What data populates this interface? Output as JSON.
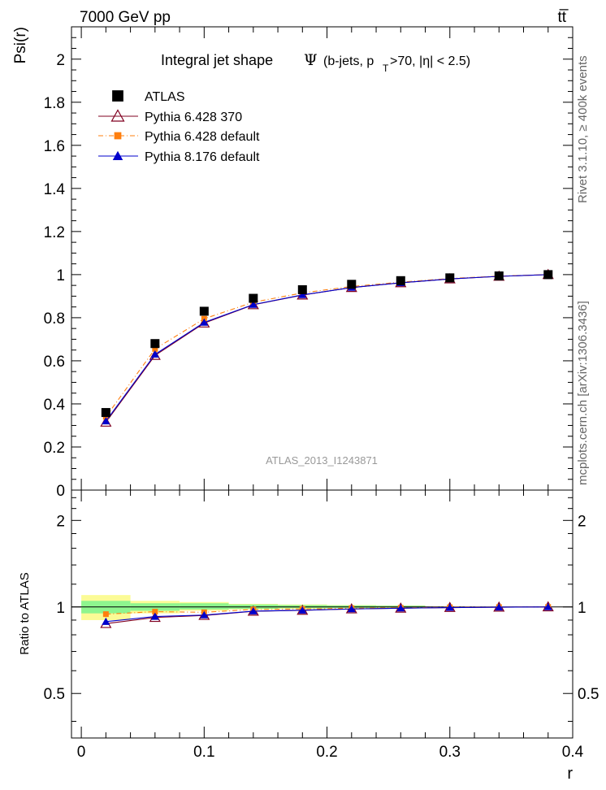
{
  "header": {
    "left": "7000 GeV pp",
    "right": "tt̅",
    "title_main": "Integral jet shape",
    "title_symbol": "Ψ",
    "title_paren_open": "(b-jets, p",
    "title_sub": "T",
    "title_paren_close": ">70, |η| < 2.5)"
  },
  "side_labels": {
    "rivet": "Rivet 3.1.10, ≥ 400k events",
    "mcplots": "mcplots.cern.ch [arXiv:1306.3436]"
  },
  "watermark": "ATLAS_2013_I1243871",
  "colors": {
    "atlas": "#000000",
    "p6_370": "#800020",
    "p6_default": "#ff7f0e",
    "p8_default": "#0000cc",
    "band_inner": "#8ef58e",
    "band_outer": "#fbfb96"
  },
  "chart_data": [
    {
      "type": "scatter",
      "panel": "main",
      "ylabel": "Psi(r)",
      "xlabel": "",
      "xlim": [
        -0.008,
        0.4
      ],
      "ylim": [
        0,
        2.15
      ],
      "yticks": [
        {
          "v": 0,
          "label": "0"
        },
        {
          "v": 0.2,
          "label": "0.2"
        },
        {
          "v": 0.4,
          "label": "0.4"
        },
        {
          "v": 0.6,
          "label": "0.6"
        },
        {
          "v": 0.8,
          "label": "0.8"
        },
        {
          "v": 1,
          "label": "1"
        },
        {
          "v": 1.2,
          "label": "1.2"
        },
        {
          "v": 1.4,
          "label": "1.4"
        },
        {
          "v": 1.6,
          "label": "1.6"
        },
        {
          "v": 1.8,
          "label": "1.8"
        },
        {
          "v": 2,
          "label": "2"
        }
      ],
      "x": [
        0.02,
        0.06,
        0.1,
        0.14,
        0.18,
        0.22,
        0.26,
        0.3,
        0.34,
        0.38
      ],
      "series": [
        {
          "name": "ATLAS",
          "key": "atlas",
          "marker": "square",
          "values": [
            0.36,
            0.68,
            0.83,
            0.89,
            0.93,
            0.955,
            0.972,
            0.985,
            0.994,
            1.0
          ]
        },
        {
          "name": "Pythia 6.428 370",
          "key": "p6_370",
          "marker": "open-triangle",
          "values": [
            0.315,
            0.625,
            0.775,
            0.86,
            0.905,
            0.94,
            0.962,
            0.98,
            0.992,
            1.0
          ]
        },
        {
          "name": "Pythia 6.428 default",
          "key": "p6_default",
          "marker": "small-square",
          "values": [
            0.34,
            0.655,
            0.795,
            0.872,
            0.915,
            0.945,
            0.965,
            0.982,
            0.993,
            1.0
          ]
        },
        {
          "name": "Pythia 8.176 default",
          "key": "p8_default",
          "marker": "filled-triangle",
          "values": [
            0.32,
            0.63,
            0.778,
            0.861,
            0.906,
            0.94,
            0.962,
            0.98,
            0.992,
            1.0
          ]
        }
      ]
    },
    {
      "type": "scatter",
      "panel": "ratio",
      "ylabel": "Ratio to ATLAS",
      "xlabel": "r",
      "xlim": [
        -0.008,
        0.4
      ],
      "ylim": [
        0.35,
        2.55
      ],
      "yticks": [
        {
          "v": 0.5,
          "label": "0.5"
        },
        {
          "v": 1,
          "label": "1"
        },
        {
          "v": 2,
          "label": "2"
        }
      ],
      "xticks": [
        {
          "v": 0,
          "label": "0"
        },
        {
          "v": 0.1,
          "label": "0.1"
        },
        {
          "v": 0.2,
          "label": "0.2"
        },
        {
          "v": 0.3,
          "label": "0.3"
        },
        {
          "v": 0.4,
          "label": "0.4"
        }
      ],
      "bands": [
        {
          "x0": 0.0,
          "x1": 0.04,
          "inner": [
            0.95,
            1.05
          ],
          "outer": [
            0.9,
            1.1
          ]
        },
        {
          "x0": 0.04,
          "x1": 0.08,
          "inner": [
            0.97,
            1.03
          ],
          "outer": [
            0.95,
            1.05
          ]
        },
        {
          "x0": 0.08,
          "x1": 0.12,
          "inner": [
            0.98,
            1.03
          ],
          "outer": [
            0.97,
            1.04
          ]
        },
        {
          "x0": 0.12,
          "x1": 0.16,
          "inner": [
            0.985,
            1.02
          ],
          "outer": [
            0.98,
            1.025
          ]
        },
        {
          "x0": 0.16,
          "x1": 0.2,
          "inner": [
            0.99,
            1.015
          ],
          "outer": [
            0.985,
            1.02
          ]
        },
        {
          "x0": 0.2,
          "x1": 0.24,
          "inner": [
            0.992,
            1.012
          ],
          "outer": [
            0.99,
            1.015
          ]
        },
        {
          "x0": 0.24,
          "x1": 0.28,
          "inner": [
            0.995,
            1.01
          ],
          "outer": [
            0.993,
            1.012
          ]
        }
      ],
      "x": [
        0.02,
        0.06,
        0.1,
        0.14,
        0.18,
        0.22,
        0.26,
        0.3,
        0.34,
        0.38
      ],
      "series": [
        {
          "name": "Pythia 6.428 370",
          "key": "p6_370",
          "marker": "open-triangle",
          "values": [
            0.875,
            0.919,
            0.934,
            0.966,
            0.973,
            0.984,
            0.99,
            0.995,
            0.998,
            1.0
          ]
        },
        {
          "name": "Pythia 6.428 default",
          "key": "p6_default",
          "marker": "small-square",
          "values": [
            0.944,
            0.963,
            0.958,
            0.98,
            0.984,
            0.99,
            0.993,
            0.997,
            0.999,
            1.0
          ]
        },
        {
          "name": "Pythia 8.176 default",
          "key": "p8_default",
          "marker": "filled-triangle",
          "values": [
            0.889,
            0.926,
            0.937,
            0.967,
            0.974,
            0.984,
            0.99,
            0.995,
            0.998,
            1.0
          ]
        }
      ]
    }
  ]
}
